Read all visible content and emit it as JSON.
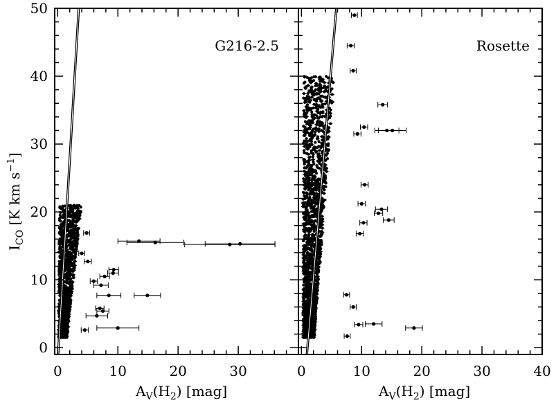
{
  "chart_data": [
    {
      "type": "scatter",
      "title": "G216-2.5",
      "xlabel": "A_V(H_2) [mag]",
      "ylabel": "I_CO [K km s^-1]",
      "xlim": [
        -0.5,
        40
      ],
      "ylim": [
        -1,
        50
      ],
      "xticks": [
        "0",
        "10",
        "20",
        "30"
      ],
      "yticks": [
        "0",
        "10",
        "20",
        "30",
        "40",
        "50"
      ],
      "fit_line": {
        "x": [
          0.0,
          3.5
        ],
        "y": [
          -2.0,
          50.0
        ]
      },
      "dense_cloud": {
        "x_range": [
          0.2,
          4.0
        ],
        "y_range": [
          1.5,
          21.0
        ],
        "n_points": 1200
      },
      "errorbar_points": [
        {
          "x": 13.5,
          "y": 15.7,
          "xerr": 3.5
        },
        {
          "x": 16.2,
          "y": 15.5,
          "xerr": 4.7
        },
        {
          "x": 28.6,
          "y": 15.2,
          "xerr": 7.5
        },
        {
          "x": 30.3,
          "y": 15.3,
          "xerr": 5.8
        },
        {
          "x": 9.3,
          "y": 11.5,
          "xerr": 0.8
        },
        {
          "x": 9.2,
          "y": 11.0,
          "xerr": 0.9
        },
        {
          "x": 14.9,
          "y": 7.7,
          "xerr": 2.2
        },
        {
          "x": 8.5,
          "y": 7.7,
          "xerr": 2.0
        },
        {
          "x": 7.8,
          "y": 10.5,
          "xerr": 0.8
        },
        {
          "x": 7.2,
          "y": 9.2,
          "xerr": 1.2
        },
        {
          "x": 7.0,
          "y": 5.8,
          "xerr": 0.7
        },
        {
          "x": 7.5,
          "y": 5.4,
          "xerr": 1.0
        },
        {
          "x": 6.5,
          "y": 4.7,
          "xerr": 1.8
        },
        {
          "x": 10.0,
          "y": 2.9,
          "xerr": 3.5
        },
        {
          "x": 4.5,
          "y": 2.6,
          "xerr": 0.6
        },
        {
          "x": 4.8,
          "y": 16.9,
          "xerr": 0.5
        },
        {
          "x": 4.0,
          "y": 13.9,
          "xerr": 0.5
        },
        {
          "x": 5.0,
          "y": 12.7,
          "xerr": 0.6
        },
        {
          "x": 6.0,
          "y": 9.8,
          "xerr": 0.6
        }
      ]
    },
    {
      "type": "scatter",
      "title": "Rosette",
      "xlabel": "A_V(H_2) [mag]",
      "ylabel": "",
      "xlim": [
        -0.5,
        40
      ],
      "ylim": [
        -1,
        50
      ],
      "xticks": [
        "0",
        "10",
        "20",
        "30",
        "40"
      ],
      "yticks": [],
      "fit_line": {
        "x": [
          0.9,
          5.8
        ],
        "y": [
          -1.0,
          50.0
        ]
      },
      "dense_cloud": {
        "x_range": [
          0.3,
          5.5
        ],
        "y_range": [
          1.5,
          40.0
        ],
        "n_points": 1800
      },
      "errorbar_points": [
        {
          "x": 14.2,
          "y": 32.0,
          "xerr": 2.0
        },
        {
          "x": 15.1,
          "y": 32.0,
          "xerr": 2.3
        },
        {
          "x": 13.5,
          "y": 35.8,
          "xerr": 0.8
        },
        {
          "x": 13.3,
          "y": 20.4,
          "xerr": 1.0
        },
        {
          "x": 12.8,
          "y": 19.8,
          "xerr": 0.7
        },
        {
          "x": 14.5,
          "y": 18.8,
          "xerr": 0.9
        },
        {
          "x": 18.7,
          "y": 2.9,
          "xerr": 1.4
        },
        {
          "x": 12.0,
          "y": 3.5,
          "xerr": 1.4
        },
        {
          "x": 9.5,
          "y": 3.4,
          "xerr": 0.7
        },
        {
          "x": 8.2,
          "y": 44.5,
          "xerr": 0.6
        },
        {
          "x": 8.8,
          "y": 49.0,
          "xerr": 0.5
        },
        {
          "x": 8.6,
          "y": 40.8,
          "xerr": 0.5
        },
        {
          "x": 10.5,
          "y": 24.0,
          "xerr": 0.6
        },
        {
          "x": 10.4,
          "y": 32.5,
          "xerr": 0.6
        },
        {
          "x": 10.3,
          "y": 18.4,
          "xerr": 0.6
        },
        {
          "x": 9.7,
          "y": 16.8,
          "xerr": 0.6
        },
        {
          "x": 10.0,
          "y": 21.2,
          "xerr": 0.6
        },
        {
          "x": 7.5,
          "y": 7.8,
          "xerr": 0.5
        },
        {
          "x": 8.6,
          "y": 6.0,
          "xerr": 0.5
        },
        {
          "x": 7.6,
          "y": 1.7,
          "xerr": 0.5
        },
        {
          "x": 9.3,
          "y": 31.5,
          "xerr": 0.6
        }
      ]
    }
  ]
}
